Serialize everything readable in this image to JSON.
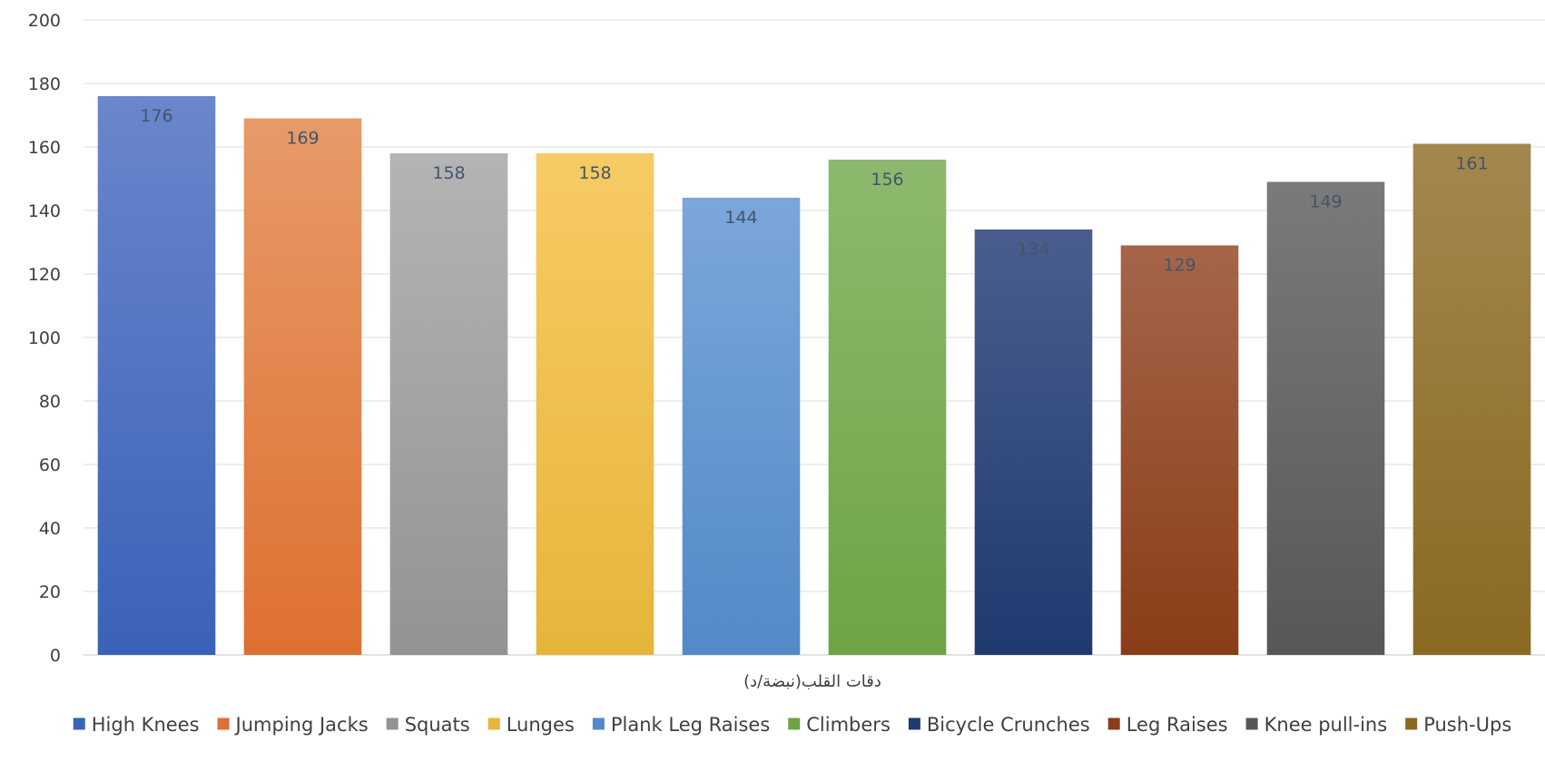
{
  "chart_data": {
    "type": "bar",
    "title": "",
    "xlabel": "دقات القلب(نبضة/د)",
    "ylabel": "",
    "ylim": [
      0,
      200
    ],
    "yticks": [
      0,
      20,
      40,
      60,
      80,
      100,
      120,
      140,
      160,
      180,
      200
    ],
    "grid": true,
    "legend_position": "bottom",
    "series": [
      {
        "name": "High Knees",
        "value": 176,
        "color_top": "#6a86cc",
        "color_bottom": "#3a62b8"
      },
      {
        "name": "Jumping Jacks",
        "value": 169,
        "color_top": "#e79a68",
        "color_bottom": "#de7031"
      },
      {
        "name": "Squats",
        "value": 158,
        "color_top": "#b4b4b4",
        "color_bottom": "#939393"
      },
      {
        "name": "Lunges",
        "value": 158,
        "color_top": "#f7cb64",
        "color_bottom": "#e6b53a"
      },
      {
        "name": "Plank Leg Raises",
        "value": 144,
        "color_top": "#7ba6db",
        "color_bottom": "#5289c8"
      },
      {
        "name": "Climbers",
        "value": 156,
        "color_top": "#8db96e",
        "color_bottom": "#6ea443"
      },
      {
        "name": "Bicycle Crunches",
        "value": 134,
        "color_top": "#4a5e8e",
        "color_bottom": "#1f3a6f"
      },
      {
        "name": "Leg Raises",
        "value": 129,
        "color_top": "#a6654a",
        "color_bottom": "#8a3d18"
      },
      {
        "name": "Knee pull-ins",
        "value": 149,
        "color_top": "#7a7a7a",
        "color_bottom": "#575757"
      },
      {
        "name": "Push-Ups",
        "value": 161,
        "color_top": "#a3874d",
        "color_bottom": "#8a6a22"
      }
    ]
  }
}
